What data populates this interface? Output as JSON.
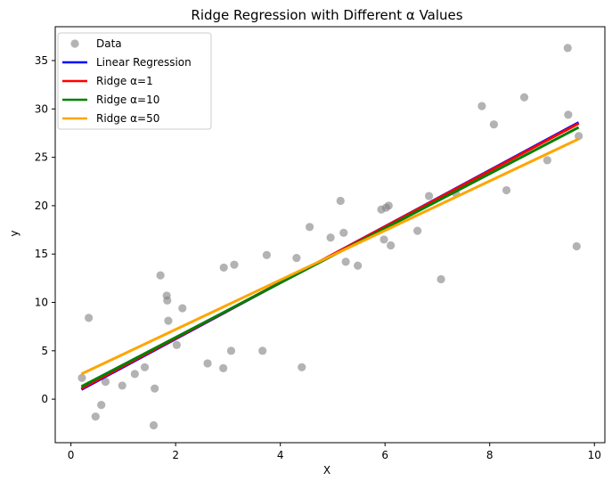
{
  "chart_data": {
    "type": "scatter",
    "title": "Ridge Regression with Different α Values",
    "xlabel": "X",
    "ylabel": "y",
    "xlim": [
      -0.3,
      10.2
    ],
    "ylim": [
      -4.5,
      38.5
    ],
    "x_ticks": [
      0,
      2,
      4,
      6,
      8,
      10
    ],
    "x_tick_labels": [
      "0",
      "2",
      "4",
      "6",
      "8",
      "10"
    ],
    "y_ticks": [
      0,
      5,
      10,
      15,
      20,
      25,
      30,
      35
    ],
    "y_tick_labels": [
      "0",
      "5",
      "10",
      "15",
      "20",
      "25",
      "30",
      "35"
    ],
    "grid": false,
    "legend_position": "top-left",
    "scatter": {
      "name": "Data",
      "color": "#808080",
      "points": [
        [
          0.21,
          2.2
        ],
        [
          0.34,
          8.4
        ],
        [
          0.47,
          -1.8
        ],
        [
          0.58,
          -0.6
        ],
        [
          0.66,
          1.8
        ],
        [
          0.98,
          1.4
        ],
        [
          1.22,
          2.6
        ],
        [
          1.41,
          3.3
        ],
        [
          1.58,
          -2.7
        ],
        [
          1.6,
          1.1
        ],
        [
          1.71,
          12.8
        ],
        [
          1.83,
          10.7
        ],
        [
          1.84,
          10.2
        ],
        [
          1.86,
          8.1
        ],
        [
          2.02,
          5.6
        ],
        [
          2.13,
          9.4
        ],
        [
          2.61,
          3.7
        ],
        [
          2.91,
          3.2
        ],
        [
          2.92,
          13.6
        ],
        [
          3.06,
          5.0
        ],
        [
          3.12,
          13.9
        ],
        [
          3.66,
          5.0
        ],
        [
          3.74,
          14.9
        ],
        [
          4.31,
          14.6
        ],
        [
          4.41,
          3.3
        ],
        [
          4.56,
          17.8
        ],
        [
          4.96,
          16.7
        ],
        [
          5.15,
          20.5
        ],
        [
          5.21,
          17.2
        ],
        [
          5.25,
          14.2
        ],
        [
          5.48,
          13.8
        ],
        [
          5.93,
          19.6
        ],
        [
          5.98,
          16.5
        ],
        [
          6.02,
          19.8
        ],
        [
          6.07,
          20.0
        ],
        [
          6.11,
          15.9
        ],
        [
          6.62,
          17.4
        ],
        [
          6.84,
          21.0
        ],
        [
          7.07,
          12.4
        ],
        [
          7.35,
          21.3
        ],
        [
          7.85,
          30.3
        ],
        [
          8.08,
          28.4
        ],
        [
          8.32,
          21.6
        ],
        [
          8.66,
          31.2
        ],
        [
          9.1,
          24.7
        ],
        [
          9.49,
          36.3
        ],
        [
          9.5,
          29.4
        ],
        [
          9.66,
          15.8
        ],
        [
          9.7,
          27.2
        ]
      ]
    },
    "series": [
      {
        "name": "Linear Regression",
        "color": "#0000ff",
        "x": [
          0.2,
          9.7
        ],
        "y": [
          1.0,
          28.6
        ]
      },
      {
        "name": "Ridge α=1",
        "color": "#ff0000",
        "x": [
          0.2,
          9.7
        ],
        "y": [
          1.1,
          28.5
        ]
      },
      {
        "name": "Ridge α=10",
        "color": "#008000",
        "x": [
          0.2,
          9.7
        ],
        "y": [
          1.3,
          28.1
        ]
      },
      {
        "name": "Ridge α=50",
        "color": "#ffa500",
        "x": [
          0.2,
          9.7
        ],
        "y": [
          2.6,
          26.9
        ]
      }
    ]
  }
}
